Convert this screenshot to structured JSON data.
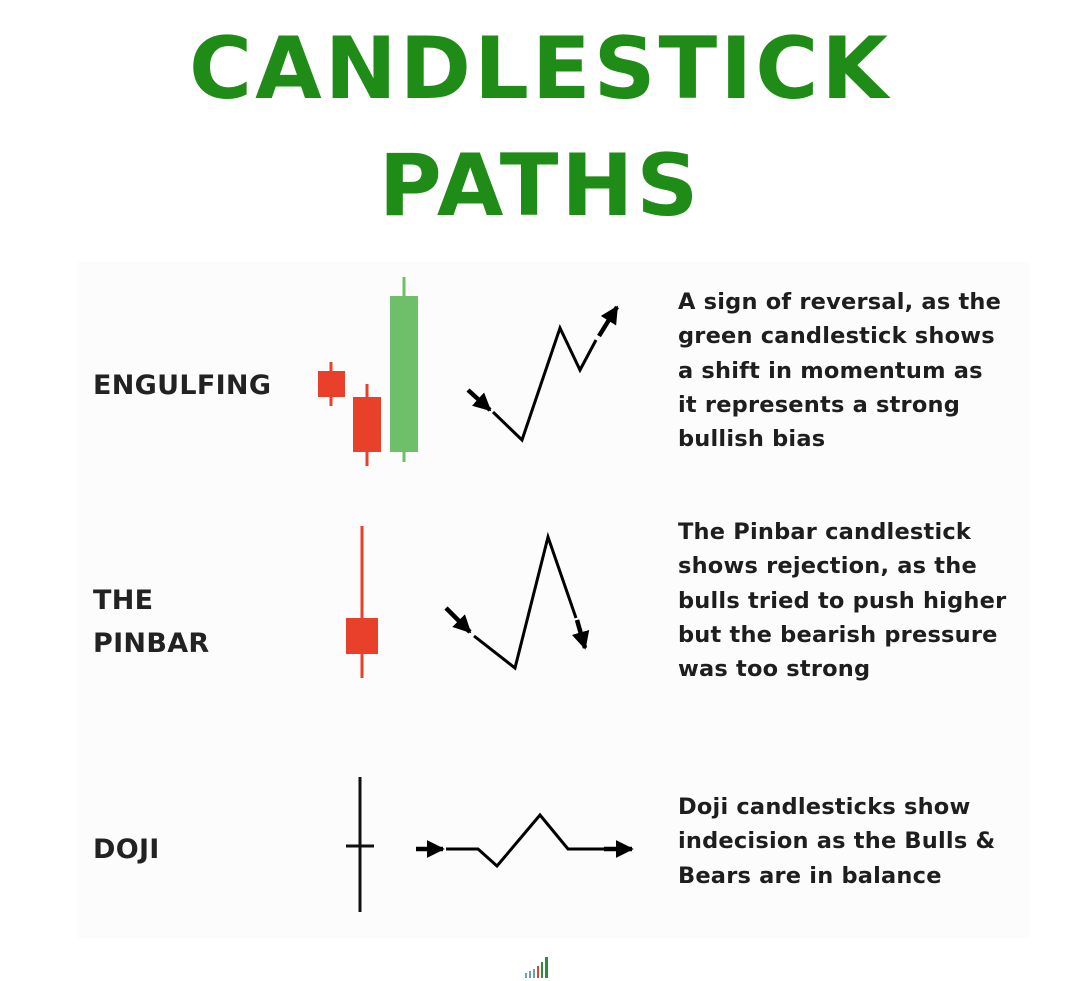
{
  "title": {
    "line1": "CANDLESTICK",
    "line2": "PATHS",
    "color": "#1f8c17"
  },
  "colors": {
    "bullish": "#6fbf6a",
    "bearish": "#e8402a",
    "text": "#1e1e1e"
  },
  "patterns": [
    {
      "name_lines": [
        "ENGULFING"
      ],
      "description_lines": [
        "A sign of reversal, as the",
        "green candlestick shows",
        "a shift in momentum as",
        "it represents a strong",
        "bullish bias"
      ]
    },
    {
      "name_lines": [
        "THE",
        "PINBAR"
      ],
      "description_lines": [
        "The Pinbar candlestick",
        "shows rejection, as the",
        "bulls tried to push higher",
        "but the bearish pressure",
        "was too strong"
      ]
    },
    {
      "name_lines": [
        "DOJI"
      ],
      "description_lines": [
        "Doji candlesticks show",
        "indecision as the Bulls &",
        "Bears are in balance"
      ]
    }
  ]
}
